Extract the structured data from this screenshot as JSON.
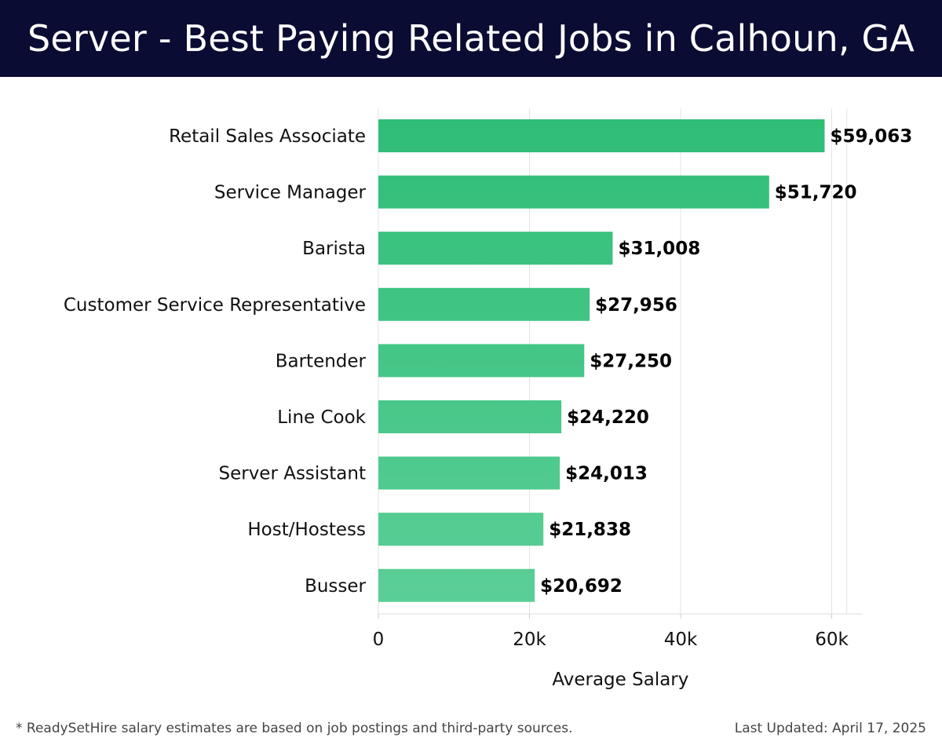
{
  "header": {
    "title": "Server - Best Paying Related Jobs in Calhoun, GA"
  },
  "chart_data": {
    "type": "bar",
    "orientation": "horizontal",
    "categories": [
      "Retail Sales Associate",
      "Service Manager",
      "Barista",
      "Customer Service Representative",
      "Bartender",
      "Line Cook",
      "Server Assistant",
      "Host/Hostess",
      "Busser"
    ],
    "values": [
      59063,
      51720,
      31008,
      27956,
      27250,
      24220,
      24013,
      21838,
      20692
    ],
    "value_labels": [
      "$59,063",
      "$51,720",
      "$31,008",
      "$27,956",
      "$27,250",
      "$24,220",
      "$24,013",
      "$21,838",
      "$20,692"
    ],
    "xlabel": "Average Salary",
    "xlim": [
      0,
      62000
    ],
    "xticks": [
      0,
      20000,
      40000,
      60000
    ],
    "xtick_labels": [
      "0",
      "20k",
      "40k",
      "60k"
    ],
    "grid": "vertical",
    "colors": {
      "bar_top": "#2ebd76",
      "bar_bottom": "#5ccf98",
      "grid": "#e3e3e3",
      "header_bg": "#0b0c33"
    }
  },
  "footer": {
    "note": "* ReadySetHire salary estimates are based on job postings and third-party sources.",
    "updated": "Last Updated: April 17, 2025"
  }
}
